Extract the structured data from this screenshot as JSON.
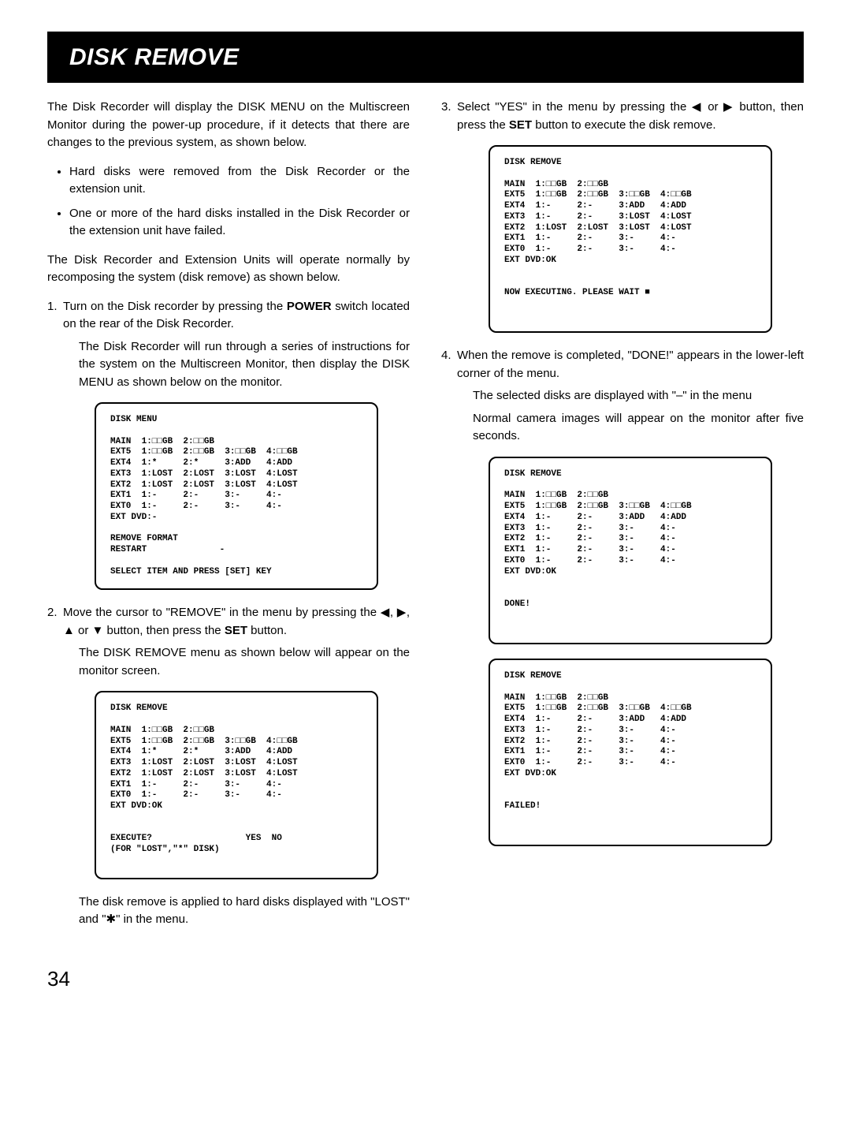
{
  "page_number": "34",
  "banner_title": "DISK REMOVE",
  "left": {
    "intro": "The Disk Recorder will display the DISK MENU on the Multiscreen Monitor during the power-up procedure, if it detects that there are changes to the previous system, as shown below.",
    "bullets": [
      "Hard disks were removed from the Disk Recorder or the extension unit.",
      "One or more of the hard disks installed in the Disk Recorder or the extension unit have failed."
    ],
    "para2": "The Disk Recorder and Extension Units will operate normally by recomposing the system (disk remove) as shown below.",
    "step1_a": "Turn on the Disk recorder by pressing the ",
    "step1_power": "POWER",
    "step1_b": " switch located on the rear of the Disk Recorder.",
    "step1_sub": "The Disk Recorder will run through a series of instructions for the system on the Multiscreen Monitor, then display the DISK MENU as shown below on the monitor.",
    "screen1": "DISK MENU\n\nMAIN  1:□□GB  2:□□GB\nEXT5  1:□□GB  2:□□GB  3:□□GB  4:□□GB\nEXT4  1:*     2:*     3:ADD   4:ADD\nEXT3  1:LOST  2:LOST  3:LOST  4:LOST\nEXT2  1:LOST  2:LOST  3:LOST  4:LOST\nEXT1  1:-     2:-     3:-     4:-\nEXT0  1:-     2:-     3:-     4:-\nEXT DVD:-\n\nREMOVE FORMAT\nRESTART              -\n\nSELECT ITEM AND PRESS [SET] KEY\n",
    "step2_a": "Move the cursor to \"REMOVE\" in the menu by pressing the ◀, ▶, ▲ or ▼ button, then press the ",
    "step2_set": "SET",
    "step2_b": " button.",
    "step2_sub": "The DISK REMOVE menu as shown below will appear on the monitor screen.",
    "screen2": "DISK REMOVE\n\nMAIN  1:□□GB  2:□□GB\nEXT5  1:□□GB  2:□□GB  3:□□GB  4:□□GB\nEXT4  1:*     2:*     3:ADD   4:ADD\nEXT3  1:LOST  2:LOST  3:LOST  4:LOST\nEXT2  1:LOST  2:LOST  3:LOST  4:LOST\nEXT1  1:-     2:-     3:-     4:-\nEXT0  1:-     2:-     3:-     4:-\nEXT DVD:OK\n\n\nEXECUTE?                  YES  NO\n(FOR \"LOST\",\"*\" DISK)\n\n",
    "step2_note": "The disk remove is applied to hard disks displayed with \"LOST\" and \"✱\" in the menu."
  },
  "right": {
    "step3_a": "Select \"YES\" in the menu by pressing the ◀ or ▶ button, then press the ",
    "step3_set": "SET",
    "step3_b": " button to execute the disk remove.",
    "screen3": "DISK REMOVE\n\nMAIN  1:□□GB  2:□□GB\nEXT5  1:□□GB  2:□□GB  3:□□GB  4:□□GB\nEXT4  1:-     2:-     3:ADD   4:ADD\nEXT3  1:-     2:-     3:LOST  4:LOST\nEXT2  1:LOST  2:LOST  3:LOST  4:LOST\nEXT1  1:-     2:-     3:-     4:-\nEXT0  1:-     2:-     3:-     4:-\nEXT DVD:OK\n\n\nNOW EXECUTING. PLEASE WAIT ■\n\n\n",
    "step4_a": "When the remove is completed, \"DONE!\" appears in the lower-left corner of the menu.",
    "step4_sub1": "The selected disks are displayed with \"–\" in the menu",
    "step4_sub2": "Normal camera images will appear on the monitor after five seconds.",
    "screen4": "DISK REMOVE\n\nMAIN  1:□□GB  2:□□GB\nEXT5  1:□□GB  2:□□GB  3:□□GB  4:□□GB\nEXT4  1:-     2:-     3:ADD   4:ADD\nEXT3  1:-     2:-     3:-     4:-\nEXT2  1:-     2:-     3:-     4:-\nEXT1  1:-     2:-     3:-     4:-\nEXT0  1:-     2:-     3:-     4:-\nEXT DVD:OK\n\n\nDONE!\n\n\n",
    "screen5": "DISK REMOVE\n\nMAIN  1:□□GB  2:□□GB\nEXT5  1:□□GB  2:□□GB  3:□□GB  4:□□GB\nEXT4  1:-     2:-     3:ADD   4:ADD\nEXT3  1:-     2:-     3:-     4:-\nEXT2  1:-     2:-     3:-     4:-\nEXT1  1:-     2:-     3:-     4:-\nEXT0  1:-     2:-     3:-     4:-\nEXT DVD:OK\n\n\nFAILED!\n\n\n"
  }
}
